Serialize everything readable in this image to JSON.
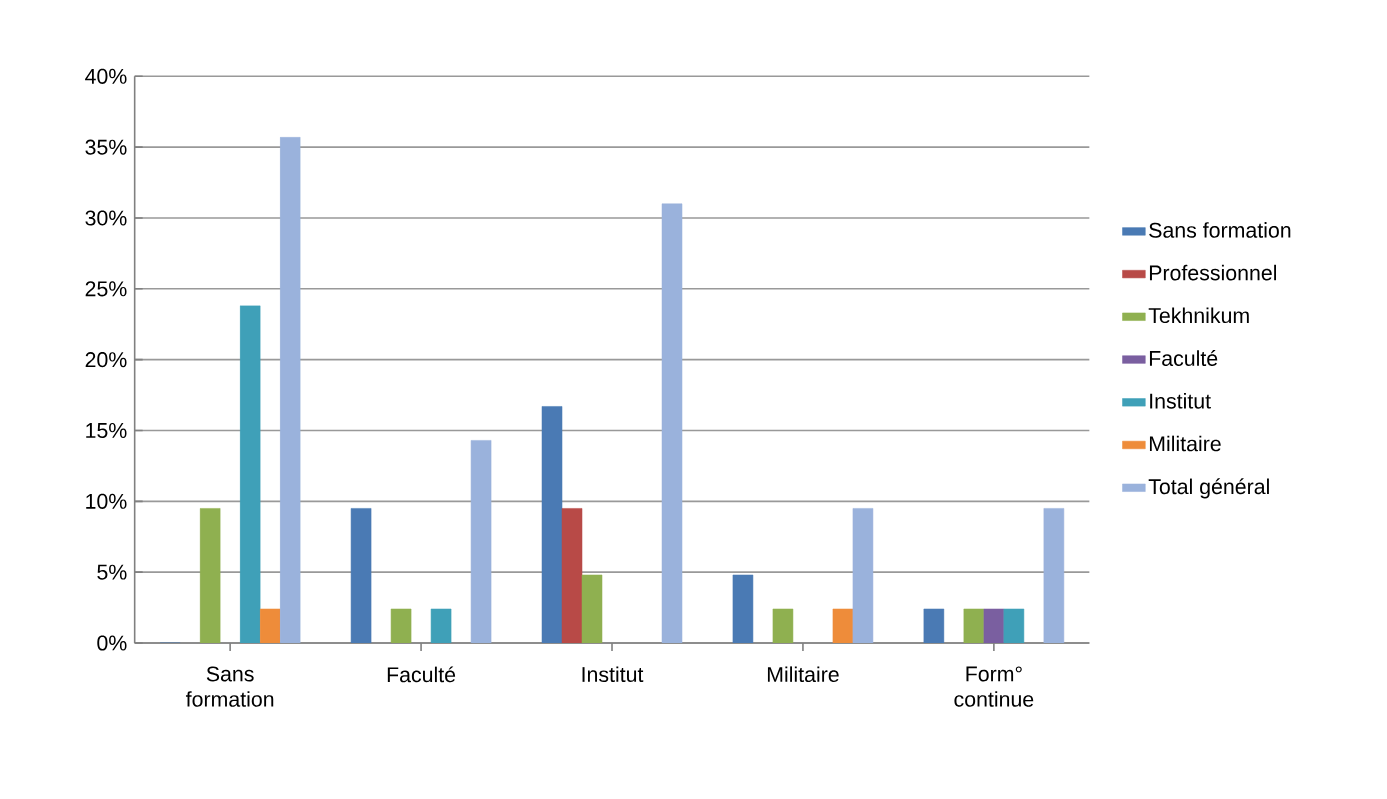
{
  "chart_data": {
    "type": "bar",
    "categories": [
      "Sans formation",
      "Faculté",
      "Institut",
      "Militaire",
      "Form° continue"
    ],
    "series": [
      {
        "name": "Sans formation",
        "color": "#4a7ab4",
        "values": [
          0,
          9.5,
          16.7,
          4.8,
          2.4
        ]
      },
      {
        "name": "Professionnel",
        "color": "#b84a47",
        "values": [
          null,
          null,
          9.5,
          null,
          null
        ]
      },
      {
        "name": "Tekhnikum",
        "color": "#8fb050",
        "values": [
          9.5,
          2.4,
          4.8,
          2.4,
          2.4
        ]
      },
      {
        "name": "Faculté",
        "color": "#7a5fa0",
        "values": [
          null,
          null,
          null,
          null,
          2.4
        ]
      },
      {
        "name": "Institut",
        "color": "#3fa0b8",
        "values": [
          23.8,
          2.4,
          null,
          null,
          2.4
        ]
      },
      {
        "name": "Militaire",
        "color": "#ee8c3a",
        "values": [
          2.4,
          null,
          null,
          2.4,
          null
        ]
      },
      {
        "name": "Total général",
        "color": "#9ab2dc",
        "values": [
          35.7,
          14.3,
          31,
          9.5,
          9.5
        ]
      }
    ],
    "ylim": [
      0,
      40
    ],
    "yticks": [
      {
        "value": 0,
        "label": "0%"
      },
      {
        "value": 5,
        "label": "5%"
      },
      {
        "value": 10,
        "label": "10%"
      },
      {
        "value": 15,
        "label": "15%"
      },
      {
        "value": 20,
        "label": "20%"
      },
      {
        "value": 25,
        "label": "25%"
      },
      {
        "value": 30,
        "label": "30%"
      },
      {
        "value": 35,
        "label": "35%"
      },
      {
        "value": 40,
        "label": "40%"
      }
    ],
    "grid": "y",
    "legend": "right"
  }
}
